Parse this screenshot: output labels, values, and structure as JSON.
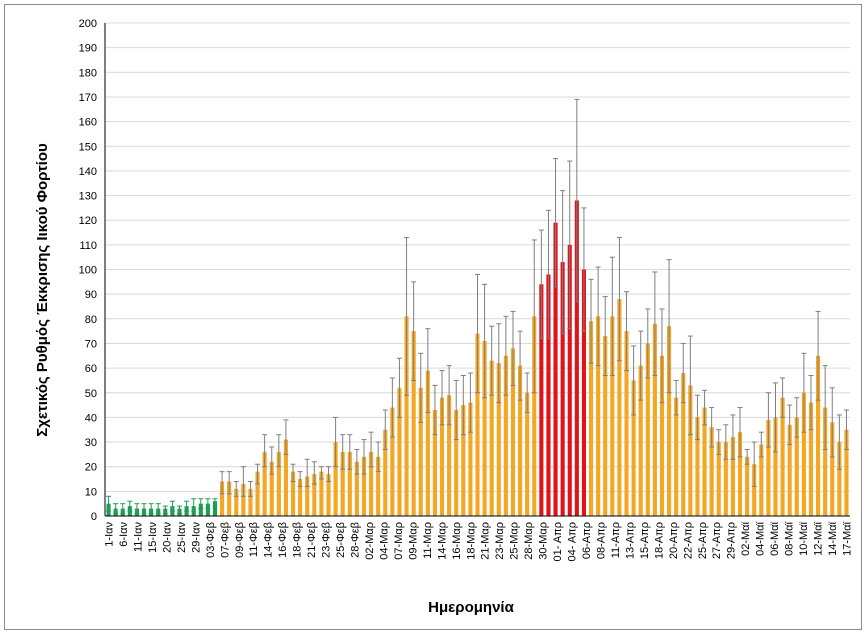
{
  "chart_data": {
    "type": "bar",
    "title": "",
    "xlabel": "Ημερομηνία",
    "ylabel": "Σχετικός Ρυθμός Έκκρισης Ιικού Φορτίου",
    "ylim": [
      0,
      200
    ],
    "ytick_step": 10,
    "grid": true,
    "error_bars": true,
    "colors": {
      "green": "#1e9e55",
      "orange": "#f5a623",
      "red": "#e0131a",
      "error_bar": "#7f7f7f",
      "grid": "#d9d9d9",
      "axis": "#000000"
    },
    "x_tick_labels": [
      "1-Ιαν",
      "6-Ιαν",
      "11-Ιαν",
      "15-Ιαν",
      "20-Ιαν",
      "25-Ιαν",
      "29-Ιαν",
      "03-Φεβ",
      "07-Φεβ",
      "09-Φεβ",
      "11-Φεβ",
      "14-Φεβ",
      "16-Φεβ",
      "18-Φεβ",
      "21-Φεβ",
      "23-Φεβ",
      "25-Φεβ",
      "28-Φεβ",
      "02-Μαρ",
      "04-Μαρ",
      "07-Μαρ",
      "09-Μαρ",
      "11-Μαρ",
      "14-Μαρ",
      "16-Μαρ",
      "18-Μαρ",
      "21-Μαρ",
      "23-Μαρ",
      "25-Μαρ",
      "28-Μαρ",
      "30-Μαρ",
      "01- Απρ",
      "04- Απρ",
      "06-Απρ",
      "08-Απρ",
      "11-Απρ",
      "13-Απρ",
      "15-Απρ",
      "18-Απρ",
      "20-Απρ",
      "22-Απρ",
      "25-Απρ",
      "27-Απρ",
      "29-Απρ",
      "02-Μαϊ",
      "04-Μαϊ",
      "06-Μαϊ",
      "08-Μαϊ",
      "10-Μαϊ",
      "12-Μαϊ",
      "14-Μαϊ",
      "17-Μαϊ"
    ],
    "series": [
      {
        "values": [
          5,
          3,
          3,
          4,
          3,
          3,
          3,
          3,
          3,
          4,
          3,
          4,
          4,
          5,
          5,
          6,
          14,
          14,
          11,
          13,
          11,
          18,
          26,
          22,
          26,
          31,
          18,
          15,
          16,
          17,
          18,
          17,
          30,
          26,
          26,
          22,
          24,
          26,
          24,
          35,
          44,
          52,
          81,
          75,
          52,
          59,
          43,
          48,
          49,
          43,
          45,
          46,
          74,
          71,
          63,
          62,
          65,
          68,
          61,
          50,
          81,
          94,
          98,
          119,
          103,
          110,
          128,
          100,
          79,
          81,
          73,
          81,
          88,
          75,
          55,
          61,
          70,
          78,
          65,
          77,
          48,
          58,
          53,
          40,
          44,
          36,
          30,
          30,
          32,
          34,
          24,
          21,
          29,
          39,
          40,
          48,
          37,
          40,
          50,
          46,
          65,
          44,
          38,
          30,
          35
        ],
        "err_plus": [
          3,
          2,
          2,
          2,
          2,
          2,
          2,
          2,
          1,
          2,
          1,
          2,
          3,
          2,
          2,
          1,
          4,
          4,
          3,
          7,
          3,
          3,
          7,
          6,
          7,
          8,
          3,
          3,
          7,
          5,
          2,
          3,
          10,
          7,
          7,
          5,
          7,
          8,
          6,
          8,
          12,
          12,
          32,
          20,
          14,
          17,
          10,
          11,
          12,
          12,
          12,
          12,
          24,
          23,
          14,
          16,
          16,
          15,
          14,
          8,
          31,
          22,
          26,
          26,
          29,
          34,
          41,
          25,
          17,
          20,
          16,
          24,
          25,
          16,
          14,
          14,
          14,
          21,
          19,
          27,
          7,
          12,
          20,
          9,
          7,
          8,
          5,
          7,
          9,
          10,
          3,
          9,
          5,
          11,
          14,
          8,
          8,
          8,
          16,
          11,
          18,
          17,
          14,
          11,
          8
        ],
        "err_minus": [
          3,
          2,
          2,
          2,
          2,
          2,
          2,
          2,
          2,
          2,
          2,
          2,
          2,
          2,
          2,
          2,
          5,
          5,
          3,
          5,
          3,
          5,
          6,
          5,
          6,
          6,
          4,
          3,
          4,
          4,
          3,
          3,
          10,
          7,
          7,
          5,
          7,
          6,
          6,
          8,
          12,
          12,
          32,
          20,
          14,
          17,
          10,
          11,
          12,
          12,
          12,
          12,
          24,
          23,
          14,
          16,
          16,
          15,
          14,
          8,
          31,
          22,
          26,
          26,
          29,
          34,
          41,
          25,
          17,
          20,
          16,
          24,
          25,
          16,
          14,
          14,
          14,
          21,
          19,
          27,
          7,
          12,
          20,
          9,
          7,
          8,
          5,
          7,
          9,
          10,
          3,
          9,
          5,
          11,
          14,
          8,
          8,
          8,
          16,
          11,
          18,
          17,
          14,
          11,
          8
        ],
        "color_groups": [
          {
            "color": "green",
            "count": 16
          },
          {
            "color": "orange",
            "count": 45
          },
          {
            "color": "red",
            "count": 7
          },
          {
            "color": "orange",
            "count": 37
          }
        ]
      }
    ]
  }
}
